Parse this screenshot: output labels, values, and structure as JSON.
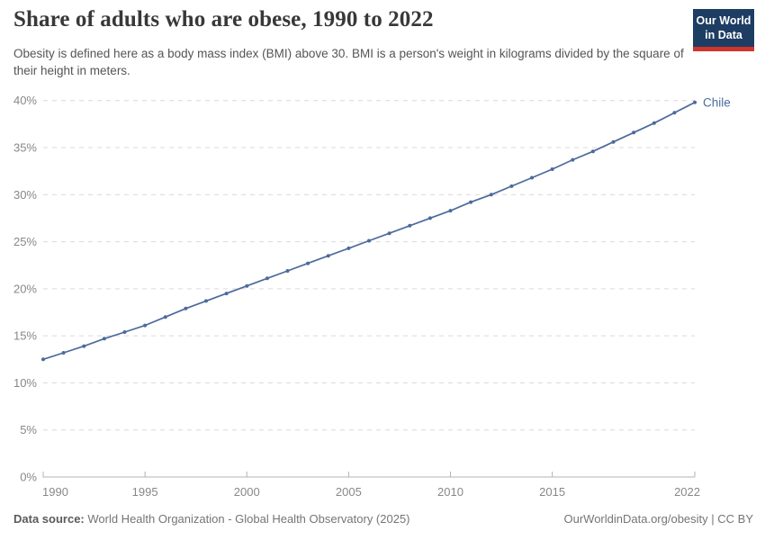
{
  "header": {
    "title": "Share of adults who are obese, 1990 to 2022",
    "subtitle": "Obesity is defined here as a body mass index (BMI) above 30. BMI is a person's weight in kilograms divided by the square of their height in meters.",
    "logo": {
      "line1": "Our World",
      "line2": "in Data"
    }
  },
  "chart_data": {
    "type": "line",
    "title": "Share of adults who are obese, 1990 to 2022",
    "xlabel": "",
    "ylabel": "",
    "unit": "%",
    "grid": "horizontal-dashed",
    "legend": "end-of-line-label",
    "end_label": "Chile",
    "ylim": [
      0,
      40
    ],
    "yticks": [
      0,
      5,
      10,
      15,
      20,
      25,
      30,
      35,
      40
    ],
    "xticks": [
      1990,
      1995,
      2000,
      2005,
      2010,
      2015,
      2022
    ],
    "x": [
      1990,
      1991,
      1992,
      1993,
      1994,
      1995,
      1996,
      1997,
      1998,
      1999,
      2000,
      2001,
      2002,
      2003,
      2004,
      2005,
      2006,
      2007,
      2008,
      2009,
      2010,
      2011,
      2012,
      2013,
      2014,
      2015,
      2016,
      2017,
      2018,
      2019,
      2020,
      2021,
      2022
    ],
    "series": [
      {
        "name": "Chile",
        "color": "#4C6A9C",
        "values": [
          12.5,
          13.2,
          13.9,
          14.7,
          15.4,
          16.1,
          17.0,
          17.9,
          18.7,
          19.5,
          20.3,
          21.1,
          21.9,
          22.7,
          23.5,
          24.3,
          25.1,
          25.9,
          26.7,
          27.5,
          28.3,
          29.2,
          30.0,
          30.9,
          31.8,
          32.7,
          33.7,
          34.6,
          35.6,
          36.6,
          37.6,
          38.7,
          39.8
        ]
      }
    ]
  },
  "footer": {
    "source_label": "Data source:",
    "source_value": " World Health Organization - Global Health Observatory (2025)",
    "credit": "OurWorldinData.org/obesity | CC BY"
  },
  "colors": {
    "line": "#4C6A9C",
    "grid": "#d9d9d9",
    "axis": "#b3b3b3",
    "tick_text": "#888888",
    "logo_bg": "#1d3d63",
    "logo_accent": "#cf342d"
  }
}
